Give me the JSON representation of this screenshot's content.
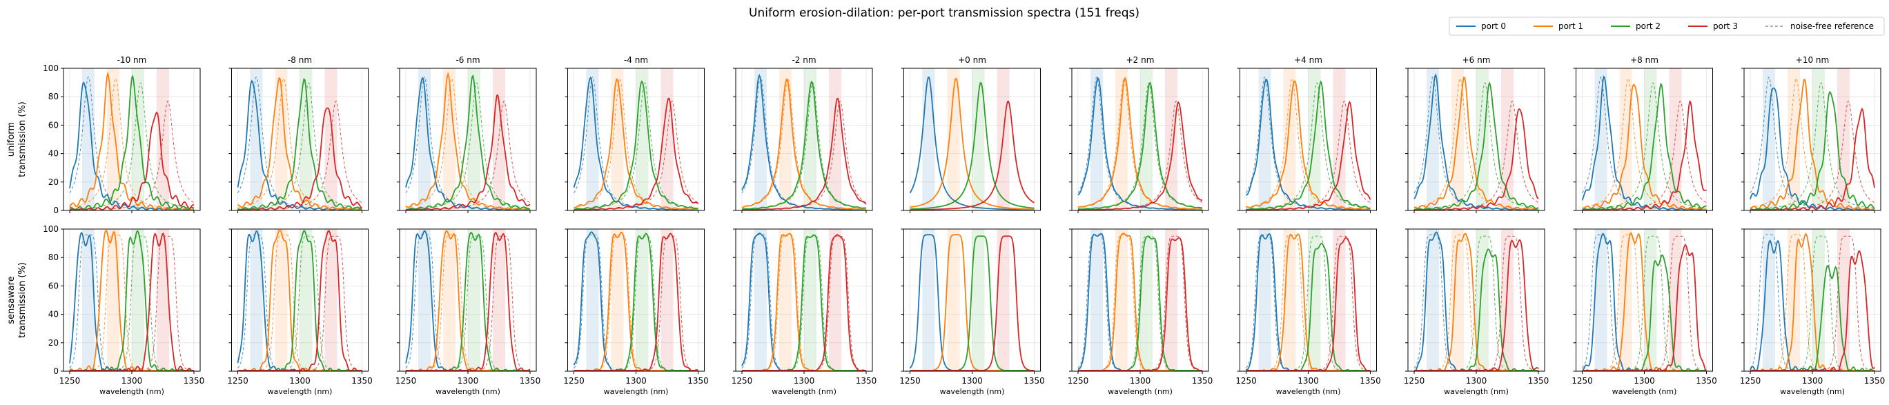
{
  "figure": {
    "title": "Uniform erosion-dilation: per-port transmission spectra (151 freqs)"
  },
  "legend": {
    "placement": "top-right",
    "entries": [
      {
        "label": "port 0",
        "color": "#1f77b4",
        "dashed": false
      },
      {
        "label": "port 1",
        "color": "#ff7f0e",
        "dashed": false
      },
      {
        "label": "port 2",
        "color": "#2ca02c",
        "dashed": false
      },
      {
        "label": "port 3",
        "color": "#d62728",
        "dashed": false
      },
      {
        "label": "noise-free reference",
        "color": "#808080",
        "dashed": true
      }
    ]
  },
  "chart_data": {
    "type": "line",
    "panel_titles": [
      "-10 nm",
      "-8 nm",
      "-6 nm",
      "-4 nm",
      "-2 nm",
      "+0 nm",
      "+2 nm",
      "+4 nm",
      "+6 nm",
      "+8 nm",
      "+10 nm"
    ],
    "offsets_nm": [
      -10,
      -8,
      -6,
      -4,
      -2,
      0,
      2,
      4,
      6,
      8,
      10
    ],
    "rows": [
      {
        "id": "uniform",
        "ylabel_lines": [
          "uniform",
          "transmission (%)"
        ]
      },
      {
        "id": "sensaware",
        "ylabel_lines": [
          "sensaware",
          "transmission (%)"
        ]
      }
    ],
    "xlabel": "wavelength (nm)",
    "xlim": [
      1245,
      1355
    ],
    "ylim": [
      0,
      100
    ],
    "xticks": [
      1250,
      1300,
      1350
    ],
    "yticks": [
      0,
      20,
      40,
      60,
      80,
      100
    ],
    "grid": true,
    "n_freqs": 151,
    "ports": [
      {
        "name": "port 0",
        "color": "#1f77b4",
        "center_nm": 1265,
        "band": [
          1260,
          1270
        ]
      },
      {
        "name": "port 1",
        "color": "#ff7f0e",
        "center_nm": 1285,
        "band": [
          1280,
          1290
        ]
      },
      {
        "name": "port 2",
        "color": "#2ca02c",
        "center_nm": 1305,
        "band": [
          1300,
          1310
        ]
      },
      {
        "name": "port 3",
        "color": "#d62728",
        "center_nm": 1325,
        "band": [
          1320,
          1330
        ]
      }
    ],
    "uniform_peaks": [
      {
        "offset": -10,
        "ports": [
          {
            "c": 1262,
            "h": 92
          },
          {
            "c": 1281,
            "h": 92
          },
          {
            "c": 1301,
            "h": 91
          },
          {
            "c": 1319,
            "h": 71
          }
        ]
      },
      {
        "offset": -8,
        "ports": [
          {
            "c": 1262,
            "h": 93
          },
          {
            "c": 1283,
            "h": 93
          },
          {
            "c": 1303,
            "h": 91
          },
          {
            "c": 1322,
            "h": 76
          }
        ]
      },
      {
        "offset": -6,
        "ports": [
          {
            "c": 1263,
            "h": 94
          },
          {
            "c": 1284,
            "h": 93
          },
          {
            "c": 1304,
            "h": 92
          },
          {
            "c": 1324,
            "h": 79
          }
        ]
      },
      {
        "offset": -4,
        "ports": [
          {
            "c": 1263,
            "h": 94
          },
          {
            "c": 1285,
            "h": 93
          },
          {
            "c": 1305,
            "h": 92
          },
          {
            "c": 1326,
            "h": 79
          }
        ]
      },
      {
        "offset": -2,
        "ports": [
          {
            "c": 1264,
            "h": 94
          },
          {
            "c": 1286,
            "h": 93
          },
          {
            "c": 1306,
            "h": 91
          },
          {
            "c": 1327,
            "h": 78
          }
        ]
      },
      {
        "offset": 0,
        "ports": [
          {
            "c": 1265,
            "h": 94
          },
          {
            "c": 1287,
            "h": 93
          },
          {
            "c": 1307,
            "h": 90
          },
          {
            "c": 1329,
            "h": 77
          }
        ]
      },
      {
        "offset": 2,
        "ports": [
          {
            "c": 1266,
            "h": 94
          },
          {
            "c": 1288,
            "h": 93
          },
          {
            "c": 1308,
            "h": 90
          },
          {
            "c": 1331,
            "h": 76
          }
        ]
      },
      {
        "offset": 4,
        "ports": [
          {
            "c": 1266,
            "h": 94
          },
          {
            "c": 1289,
            "h": 93
          },
          {
            "c": 1310,
            "h": 89
          },
          {
            "c": 1333,
            "h": 75
          }
        ]
      },
      {
        "offset": 6,
        "ports": [
          {
            "c": 1267,
            "h": 93
          },
          {
            "c": 1290,
            "h": 92
          },
          {
            "c": 1311,
            "h": 88
          },
          {
            "c": 1335,
            "h": 74
          }
        ]
      },
      {
        "offset": 8,
        "ports": [
          {
            "c": 1268,
            "h": 92
          },
          {
            "c": 1292,
            "h": 92
          },
          {
            "c": 1313,
            "h": 87
          },
          {
            "c": 1337,
            "h": 73
          }
        ]
      },
      {
        "offset": 10,
        "ports": [
          {
            "c": 1269,
            "h": 91
          },
          {
            "c": 1293,
            "h": 91
          },
          {
            "c": 1315,
            "h": 86
          },
          {
            "c": 1339,
            "h": 72
          }
        ]
      }
    ],
    "sensaware_peaks": [
      {
        "offset": -10,
        "ports": [
          {
            "c": 1262,
            "h": 93
          },
          {
            "c": 1282,
            "h": 95
          },
          {
            "c": 1303,
            "h": 94
          },
          {
            "c": 1322,
            "h": 93
          }
        ]
      },
      {
        "offset": -8,
        "ports": [
          {
            "c": 1263,
            "h": 95
          },
          {
            "c": 1284,
            "h": 96
          },
          {
            "c": 1304,
            "h": 95
          },
          {
            "c": 1324,
            "h": 95
          }
        ]
      },
      {
        "offset": -6,
        "ports": [
          {
            "c": 1263,
            "h": 96
          },
          {
            "c": 1285,
            "h": 96
          },
          {
            "c": 1305,
            "h": 95
          },
          {
            "c": 1325,
            "h": 95
          }
        ]
      },
      {
        "offset": -4,
        "ports": [
          {
            "c": 1264,
            "h": 96
          },
          {
            "c": 1286,
            "h": 96
          },
          {
            "c": 1306,
            "h": 95
          },
          {
            "c": 1326,
            "h": 95
          }
        ]
      },
      {
        "offset": -2,
        "ports": [
          {
            "c": 1264,
            "h": 96
          },
          {
            "c": 1286,
            "h": 96
          },
          {
            "c": 1306,
            "h": 95
          },
          {
            "c": 1327,
            "h": 95
          }
        ]
      },
      {
        "offset": 0,
        "ports": [
          {
            "c": 1265,
            "h": 96
          },
          {
            "c": 1287,
            "h": 96
          },
          {
            "c": 1307,
            "h": 95
          },
          {
            "c": 1328,
            "h": 95
          }
        ]
      },
      {
        "offset": 2,
        "ports": [
          {
            "c": 1266,
            "h": 96
          },
          {
            "c": 1288,
            "h": 96
          },
          {
            "c": 1308,
            "h": 94
          },
          {
            "c": 1329,
            "h": 93
          }
        ]
      },
      {
        "offset": 4,
        "ports": [
          {
            "c": 1266,
            "h": 95
          },
          {
            "c": 1289,
            "h": 95
          },
          {
            "c": 1310,
            "h": 88
          },
          {
            "c": 1330,
            "h": 92
          }
        ]
      },
      {
        "offset": 6,
        "ports": [
          {
            "c": 1267,
            "h": 95
          },
          {
            "c": 1290,
            "h": 94
          },
          {
            "c": 1311,
            "h": 83
          },
          {
            "c": 1332,
            "h": 90
          }
        ]
      },
      {
        "offset": 8,
        "ports": [
          {
            "c": 1268,
            "h": 93
          },
          {
            "c": 1292,
            "h": 94
          },
          {
            "c": 1313,
            "h": 78
          },
          {
            "c": 1334,
            "h": 85
          }
        ]
      },
      {
        "offset": 10,
        "ports": [
          {
            "c": 1269,
            "h": 88
          },
          {
            "c": 1293,
            "h": 92
          },
          {
            "c": 1315,
            "h": 70
          },
          {
            "c": 1336,
            "h": 80
          }
        ]
      }
    ],
    "reference_peaks": {
      "uniform": [
        {
          "c": 1265,
          "h": 94
        },
        {
          "c": 1287,
          "h": 93
        },
        {
          "c": 1307,
          "h": 90
        },
        {
          "c": 1329,
          "h": 77
        }
      ],
      "sensaware": [
        {
          "c": 1265,
          "h": 96
        },
        {
          "c": 1287,
          "h": 96
        },
        {
          "c": 1307,
          "h": 95
        },
        {
          "c": 1328,
          "h": 95
        }
      ]
    }
  }
}
